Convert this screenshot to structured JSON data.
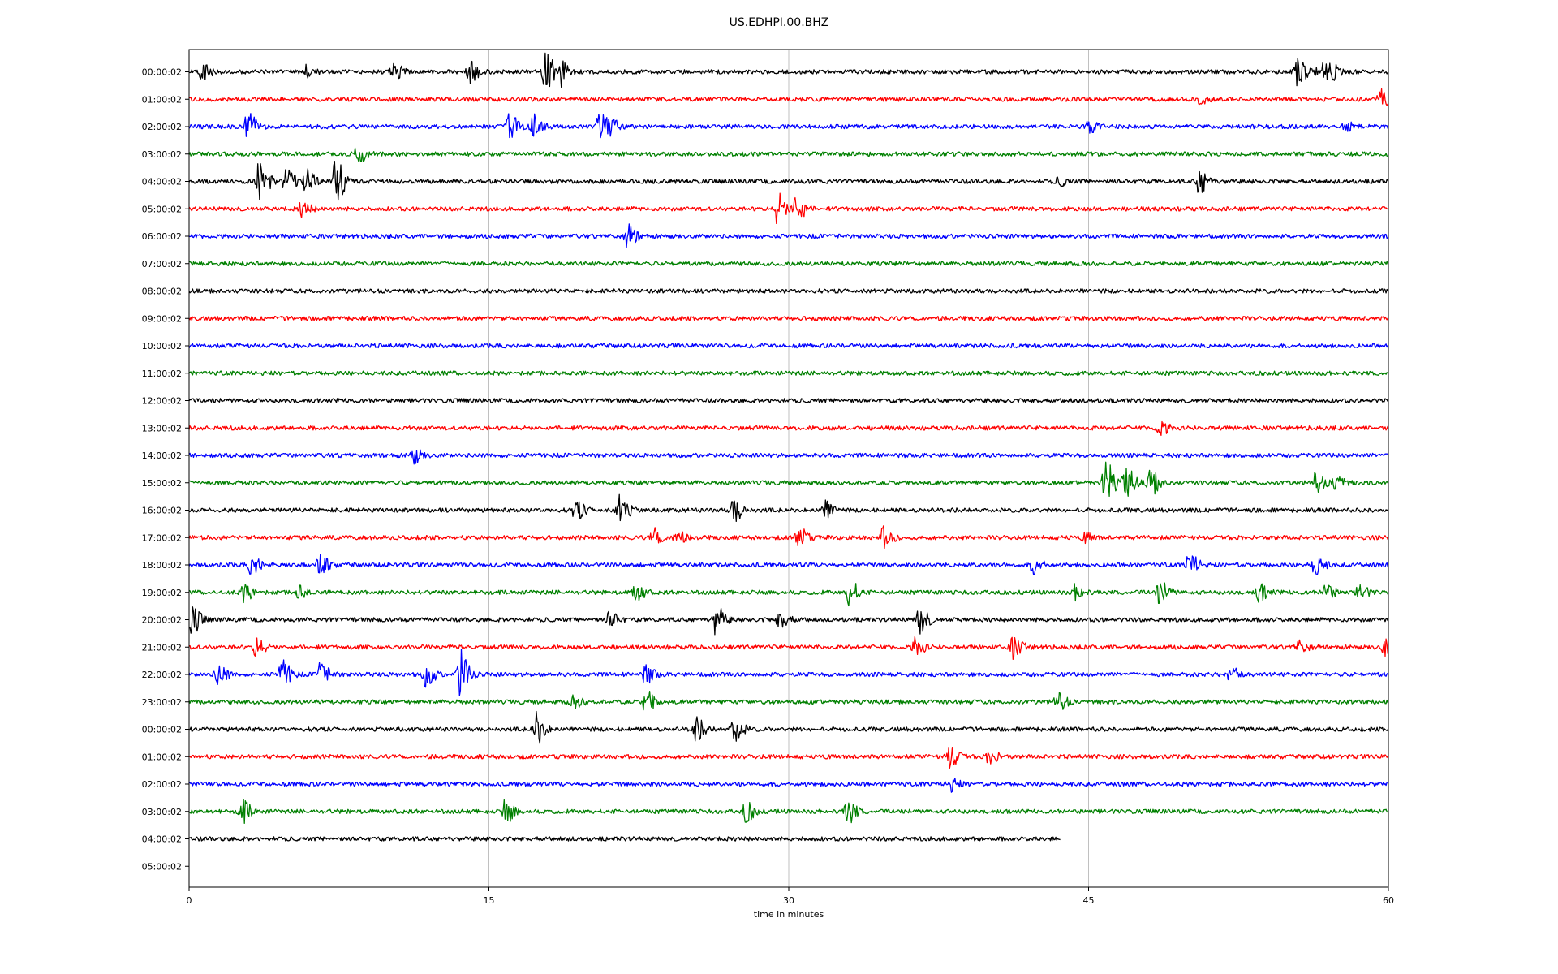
{
  "chart_data": {
    "type": "line",
    "title": "US.EDHPI.00.BHZ",
    "xlabel": "time in minutes",
    "ylabel": "",
    "xlim": [
      0,
      60
    ],
    "xticks": [
      0,
      15,
      30,
      45,
      60
    ],
    "grid": "vertical",
    "trace_colors": [
      "#000000",
      "#ff0000",
      "#0000ff",
      "#008000"
    ],
    "rows": [
      {
        "label": "00:00:02",
        "end": 60,
        "events": [
          [
            0.6,
            0.7
          ],
          [
            5.8,
            0.5
          ],
          [
            10.2,
            0.6
          ],
          [
            14,
            0.7
          ],
          [
            17.8,
            1.4
          ],
          [
            18.5,
            1.0
          ],
          [
            55.4,
            0.9
          ],
          [
            56.5,
            0.6
          ],
          [
            57,
            0.7
          ]
        ]
      },
      {
        "label": "01:00:02",
        "end": 60,
        "events": [
          [
            50.5,
            0.3
          ],
          [
            59.5,
            0.7
          ]
        ]
      },
      {
        "label": "02:00:02",
        "end": 60,
        "events": [
          [
            2.9,
            1.0
          ],
          [
            16,
            0.9
          ],
          [
            17.2,
            0.8
          ],
          [
            20.5,
            1.0
          ],
          [
            21,
            0.6
          ],
          [
            45,
            0.4
          ],
          [
            57.8,
            0.3
          ]
        ]
      },
      {
        "label": "03:00:02",
        "end": 60,
        "events": [
          [
            8.4,
            0.6
          ]
        ]
      },
      {
        "label": "04:00:02",
        "end": 60,
        "events": [
          [
            3.5,
            1.6
          ],
          [
            4.8,
            0.8
          ],
          [
            5.8,
            0.9
          ],
          [
            7.3,
            1.5
          ],
          [
            43.5,
            0.3
          ],
          [
            50.5,
            0.9
          ]
        ]
      },
      {
        "label": "05:00:02",
        "end": 60,
        "events": [
          [
            5.6,
            0.5
          ],
          [
            29.4,
            1.1
          ],
          [
            30.3,
            1.1
          ]
        ]
      },
      {
        "label": "06:00:02",
        "end": 60,
        "events": [
          [
            21.9,
            0.8
          ]
        ]
      },
      {
        "label": "07:00:02",
        "end": 60,
        "events": []
      },
      {
        "label": "08:00:02",
        "end": 60,
        "events": []
      },
      {
        "label": "09:00:02",
        "end": 60,
        "events": []
      },
      {
        "label": "10:00:02",
        "end": 60,
        "events": []
      },
      {
        "label": "11:00:02",
        "end": 60,
        "events": []
      },
      {
        "label": "12:00:02",
        "end": 60,
        "events": []
      },
      {
        "label": "13:00:02",
        "end": 60,
        "events": [
          [
            48.5,
            0.5
          ]
        ]
      },
      {
        "label": "14:00:02",
        "end": 60,
        "events": [
          [
            11.2,
            0.5
          ]
        ]
      },
      {
        "label": "15:00:02",
        "end": 60,
        "events": [
          [
            45.8,
            1.6
          ],
          [
            46.8,
            1.2
          ],
          [
            48,
            1.0
          ],
          [
            56.3,
            0.7
          ],
          [
            57.3,
            0.6
          ]
        ]
      },
      {
        "label": "16:00:02",
        "end": 60,
        "events": [
          [
            19.3,
            0.7
          ],
          [
            21.5,
            1.0
          ],
          [
            27.2,
            0.9
          ],
          [
            31.8,
            0.6
          ]
        ]
      },
      {
        "label": "17:00:02",
        "end": 60,
        "events": [
          [
            23.2,
            0.6
          ],
          [
            24.3,
            0.5
          ],
          [
            30.4,
            0.8
          ],
          [
            34.7,
            0.7
          ],
          [
            44.8,
            0.3
          ]
        ]
      },
      {
        "label": "18:00:02",
        "end": 60,
        "events": [
          [
            3.1,
            0.7
          ],
          [
            6.5,
            0.8
          ],
          [
            42.2,
            0.6
          ],
          [
            50,
            0.8
          ],
          [
            56.3,
            0.8
          ]
        ]
      },
      {
        "label": "19:00:02",
        "end": 60,
        "events": [
          [
            2.7,
            0.6
          ],
          [
            5.4,
            0.5
          ],
          [
            22.3,
            0.6
          ],
          [
            33,
            0.9
          ],
          [
            44.3,
            0.5
          ],
          [
            48.5,
            0.8
          ],
          [
            53.5,
            0.6
          ],
          [
            56.8,
            0.6
          ],
          [
            58.5,
            0.5
          ]
        ]
      },
      {
        "label": "20:00:02",
        "end": 60,
        "events": [
          [
            0.1,
            1.0
          ],
          [
            21,
            0.6
          ],
          [
            26.3,
            1.0
          ],
          [
            29.5,
            0.6
          ],
          [
            36.5,
            1.0
          ]
        ]
      },
      {
        "label": "21:00:02",
        "end": 60,
        "events": [
          [
            3.3,
            0.7
          ],
          [
            36.3,
            0.6
          ],
          [
            41.2,
            0.8
          ],
          [
            55.5,
            0.4
          ],
          [
            59.8,
            0.7
          ]
        ]
      },
      {
        "label": "22:00:02",
        "end": 60,
        "events": [
          [
            1.4,
            0.8
          ],
          [
            4.6,
            1.0
          ],
          [
            6.5,
            0.8
          ],
          [
            11.8,
            0.8
          ],
          [
            13.5,
            1.8
          ],
          [
            22.8,
            0.6
          ],
          [
            52,
            0.6
          ]
        ]
      },
      {
        "label": "23:00:02",
        "end": 60,
        "events": [
          [
            19.2,
            0.4
          ],
          [
            22.8,
            0.9
          ],
          [
            43.4,
            0.7
          ]
        ]
      },
      {
        "label": "00:00:02",
        "end": 60,
        "events": [
          [
            17.3,
            1.3
          ],
          [
            25.3,
            0.8
          ],
          [
            27.2,
            1.0
          ]
        ]
      },
      {
        "label": "01:00:02",
        "end": 60,
        "events": [
          [
            38,
            0.9
          ],
          [
            40,
            0.5
          ]
        ]
      },
      {
        "label": "02:00:02",
        "end": 60,
        "events": [
          [
            38,
            0.5
          ]
        ]
      },
      {
        "label": "03:00:02",
        "end": 60,
        "events": [
          [
            2.6,
            0.8
          ],
          [
            15.8,
            0.8
          ],
          [
            27.8,
            0.7
          ],
          [
            32.9,
            0.9
          ]
        ]
      },
      {
        "label": "04:00:02",
        "end": 43.6,
        "events": []
      },
      {
        "label": "05:00:02",
        "end": 0,
        "events": []
      }
    ]
  }
}
